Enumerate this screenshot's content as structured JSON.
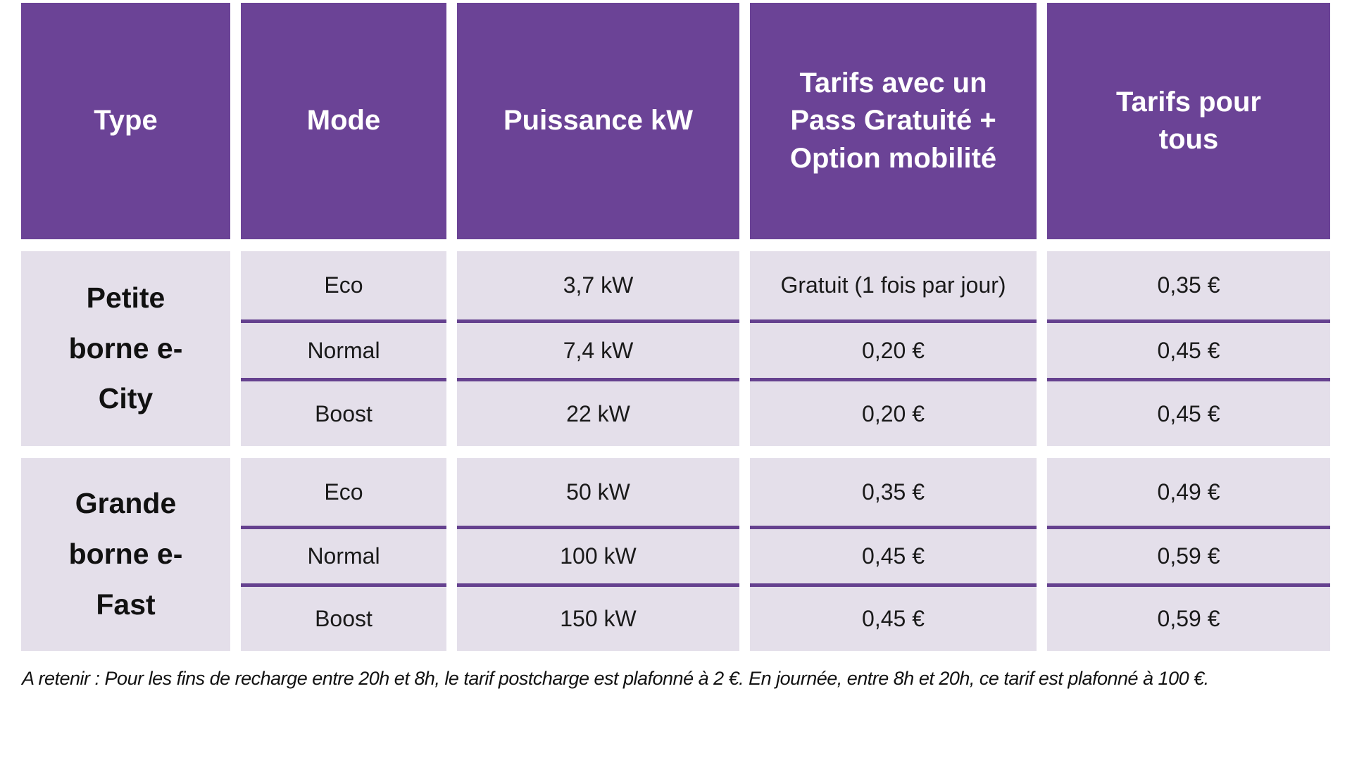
{
  "chart_data": {
    "type": "table",
    "columns": [
      "Type",
      "Mode",
      "Puissance kW",
      "Tarifs avec un Pass Gratuité + Option mobilité",
      "Tarifs pour tous"
    ],
    "groups": [
      {
        "type": "Petite borne e-City",
        "rows": [
          {
            "mode": "Eco",
            "power": "3,7 kW",
            "pass": "Gratuit (1 fois par jour)",
            "tous": "0,35 €"
          },
          {
            "mode": "Normal",
            "power": "7,4 kW",
            "pass": "0,20 €",
            "tous": "0,45 €"
          },
          {
            "mode": "Boost",
            "power": "22 kW",
            "pass": "0,20 €",
            "tous": "0,45 €"
          }
        ]
      },
      {
        "type": "Grande borne e-Fast",
        "rows": [
          {
            "mode": "Eco",
            "power": "50 kW",
            "pass": "0,35 €",
            "tous": "0,49 €"
          },
          {
            "mode": "Normal",
            "power": "100 kW",
            "pass": "0,45 €",
            "tous": "0,59 €"
          },
          {
            "mode": "Boost",
            "power": "150 kW",
            "pass": "0,45 €",
            "tous": "0,59 €"
          }
        ]
      }
    ],
    "note": "A retenir : Pour les fins de recharge entre 20h et 8h, le tarif postcharge est plafonné à 2 €. En journée, entre 8h et 20h, ce tarif est plafonné à 100 €."
  },
  "colors": {
    "header_bg": "#6B4396",
    "header_text": "#FFFFFF",
    "cell_bg": "#E4DFEA",
    "divider": "#65418F",
    "body_text": "#1A1A1A",
    "background": "#FFFFFF"
  }
}
